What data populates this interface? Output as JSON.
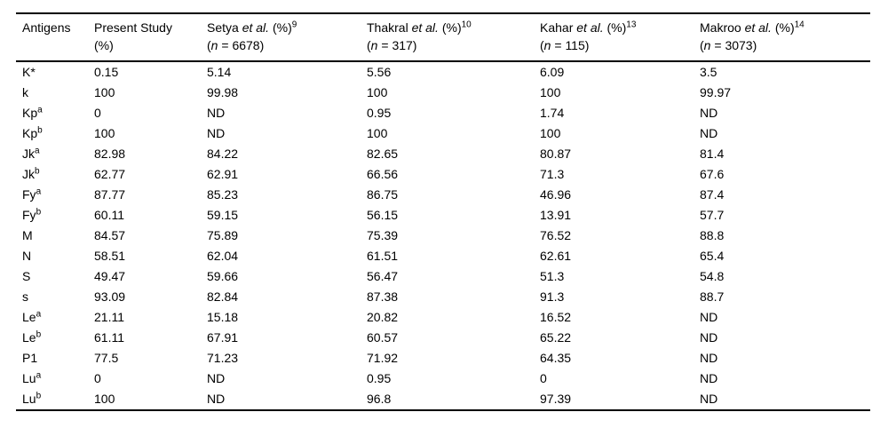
{
  "page": {
    "background_color": "#ffffff",
    "text_color": "#000000",
    "rule_color": "#000000"
  },
  "table": {
    "antigens_header": "Antigens",
    "present_study_header": {
      "line1": "Present Study",
      "line2": "(%)"
    },
    "labels": {
      "et_al": " et al. ",
      "pct": "(%)",
      "n": "n",
      "eq": " = ",
      "open_paren": "(",
      "close_paren": ")"
    },
    "study_columns": [
      {
        "author": "Setya",
        "ref": "9",
        "n_value": "6678"
      },
      {
        "author": "Thakral",
        "ref": "10",
        "n_value": "317"
      },
      {
        "author": "Kahar",
        "ref": "13",
        "n_value": "115"
      },
      {
        "author": "Makroo",
        "ref": "14",
        "n_value": "3073"
      }
    ],
    "rows": [
      {
        "antigen": "K*",
        "sup": "",
        "values": [
          "0.15",
          "5.14",
          "5.56",
          "6.09",
          "3.5"
        ]
      },
      {
        "antigen": "k",
        "sup": "",
        "values": [
          "100",
          "99.98",
          "100",
          "100",
          "99.97"
        ]
      },
      {
        "antigen": "Kp",
        "sup": "a",
        "values": [
          "0",
          "ND",
          "0.95",
          "1.74",
          "ND"
        ]
      },
      {
        "antigen": "Kp",
        "sup": "b",
        "values": [
          "100",
          "ND",
          "100",
          "100",
          "ND"
        ]
      },
      {
        "antigen": "Jk",
        "sup": "a",
        "values": [
          "82.98",
          "84.22",
          "82.65",
          "80.87",
          "81.4"
        ]
      },
      {
        "antigen": "Jk",
        "sup": "b",
        "values": [
          "62.77",
          "62.91",
          "66.56",
          "71.3",
          "67.6"
        ]
      },
      {
        "antigen": "Fy",
        "sup": "a",
        "values": [
          "87.77",
          "85.23",
          "86.75",
          "46.96",
          "87.4"
        ]
      },
      {
        "antigen": "Fy",
        "sup": "b",
        "values": [
          "60.11",
          "59.15",
          "56.15",
          "13.91",
          "57.7"
        ]
      },
      {
        "antigen": "M",
        "sup": "",
        "values": [
          "84.57",
          "75.89",
          "75.39",
          "76.52",
          "88.8"
        ]
      },
      {
        "antigen": "N",
        "sup": "",
        "values": [
          "58.51",
          "62.04",
          "61.51",
          "62.61",
          "65.4"
        ]
      },
      {
        "antigen": "S",
        "sup": "",
        "values": [
          "49.47",
          "59.66",
          "56.47",
          "51.3",
          "54.8"
        ]
      },
      {
        "antigen": "s",
        "sup": "",
        "values": [
          "93.09",
          "82.84",
          "87.38",
          "91.3",
          "88.7"
        ]
      },
      {
        "antigen": "Le",
        "sup": "a",
        "values": [
          "21.11",
          "15.18",
          "20.82",
          "16.52",
          "ND"
        ]
      },
      {
        "antigen": "Le",
        "sup": "b",
        "values": [
          "61.11",
          "67.91",
          "60.57",
          "65.22",
          "ND"
        ]
      },
      {
        "antigen": "P1",
        "sup": "",
        "values": [
          "77.5",
          "71.23",
          "71.92",
          "64.35",
          "ND"
        ]
      },
      {
        "antigen": "Lu",
        "sup": "a",
        "values": [
          "0",
          "ND",
          "0.95",
          "0",
          "ND"
        ]
      },
      {
        "antigen": "Lu",
        "sup": "b",
        "values": [
          "100",
          "ND",
          "96.8",
          "97.39",
          "ND"
        ]
      }
    ]
  }
}
